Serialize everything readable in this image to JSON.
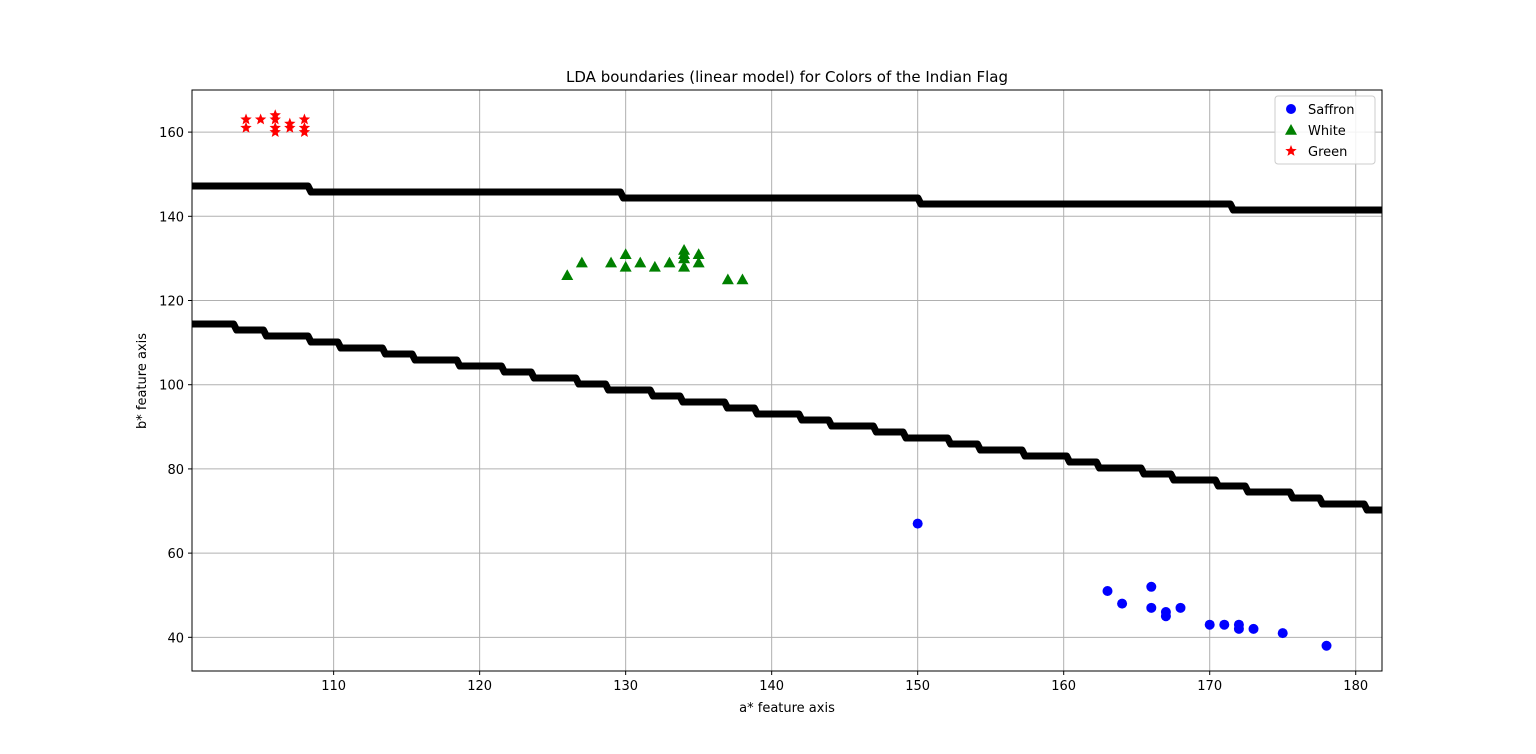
{
  "chart_data": {
    "type": "scatter",
    "title": "LDA boundaries (linear model) for Colors of the Indian Flag",
    "xlabel": "a* feature axis",
    "ylabel": "b* feature axis",
    "xlim": [
      100.3,
      181.8
    ],
    "ylim": [
      32,
      170
    ],
    "xticks": [
      110,
      120,
      130,
      140,
      150,
      160,
      170,
      180
    ],
    "yticks": [
      40,
      60,
      80,
      100,
      120,
      140,
      160
    ],
    "grid": true,
    "legend_position": "top-right",
    "series": [
      {
        "name": "Saffron",
        "marker": "circle",
        "color": "#0000ff",
        "points": [
          [
            150,
            67
          ],
          [
            163,
            51
          ],
          [
            164,
            48
          ],
          [
            166,
            52
          ],
          [
            166,
            47
          ],
          [
            167,
            46
          ],
          [
            167,
            45
          ],
          [
            168,
            47
          ],
          [
            170,
            43
          ],
          [
            171,
            43
          ],
          [
            172,
            43
          ],
          [
            172,
            42
          ],
          [
            173,
            42
          ],
          [
            175,
            41
          ],
          [
            178,
            38
          ]
        ]
      },
      {
        "name": "White",
        "marker": "triangle",
        "color": "#008000",
        "points": [
          [
            126,
            126
          ],
          [
            127,
            129
          ],
          [
            129,
            129
          ],
          [
            130,
            131
          ],
          [
            130,
            128
          ],
          [
            131,
            129
          ],
          [
            132,
            128
          ],
          [
            133,
            129
          ],
          [
            134,
            132
          ],
          [
            134,
            131
          ],
          [
            134,
            130
          ],
          [
            134,
            128
          ],
          [
            135,
            131
          ],
          [
            135,
            129
          ],
          [
            137,
            125
          ],
          [
            138,
            125
          ]
        ]
      },
      {
        "name": "Green",
        "marker": "star",
        "color": "#ff0000",
        "points": [
          [
            104,
            163
          ],
          [
            104,
            161
          ],
          [
            105,
            163
          ],
          [
            106,
            164
          ],
          [
            106,
            163
          ],
          [
            106,
            161
          ],
          [
            106,
            160
          ],
          [
            107,
            162
          ],
          [
            107,
            161
          ],
          [
            108,
            163
          ],
          [
            108,
            161
          ],
          [
            108,
            160
          ]
        ]
      }
    ],
    "boundaries": [
      {
        "color": "#000000",
        "start": [
          100.3,
          147
        ],
        "end": [
          181.8,
          141.5
        ]
      },
      {
        "color": "#000000",
        "start": [
          100.3,
          115
        ],
        "end": [
          181.8,
          70
        ]
      }
    ]
  }
}
